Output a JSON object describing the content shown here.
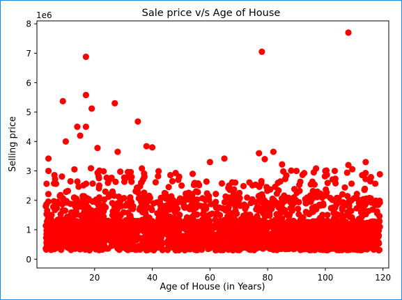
{
  "chart_data": {
    "type": "scatter",
    "title": "Sale price v/s Age of House",
    "xlabel": "Age of House (in Years)",
    "ylabel": "Selling price",
    "y_scale_label": "1e6",
    "xlim": [
      0,
      122
    ],
    "ylim": [
      -0.3,
      8.1
    ],
    "x_ticks": [
      20,
      40,
      60,
      80,
      100,
      120
    ],
    "y_ticks": [
      0,
      1,
      2,
      3,
      4,
      5,
      6,
      7,
      8
    ],
    "marker_color": "#ff0000",
    "grid": false,
    "outliers": [
      {
        "x": 108,
        "y": 7.7
      },
      {
        "x": 78,
        "y": 7.05
      },
      {
        "x": 17,
        "y": 6.88
      },
      {
        "x": 17,
        "y": 5.58
      },
      {
        "x": 9,
        "y": 5.37
      },
      {
        "x": 27,
        "y": 5.3
      },
      {
        "x": 19,
        "y": 5.12
      },
      {
        "x": 35,
        "y": 4.68
      },
      {
        "x": 14,
        "y": 4.5
      },
      {
        "x": 17,
        "y": 4.5
      },
      {
        "x": 15,
        "y": 4.2
      },
      {
        "x": 10,
        "y": 4.0
      },
      {
        "x": 38,
        "y": 3.84
      },
      {
        "x": 40,
        "y": 3.8
      },
      {
        "x": 21,
        "y": 3.78
      },
      {
        "x": 77,
        "y": 3.6
      },
      {
        "x": 82,
        "y": 3.65
      },
      {
        "x": 28,
        "y": 3.65
      },
      {
        "x": 79,
        "y": 3.4
      },
      {
        "x": 65,
        "y": 3.42
      },
      {
        "x": 4,
        "y": 3.42
      },
      {
        "x": 114,
        "y": 3.3
      },
      {
        "x": 60,
        "y": 3.3
      },
      {
        "x": 85,
        "y": 3.22
      },
      {
        "x": 108,
        "y": 3.2
      },
      {
        "x": 100,
        "y": 3.0
      },
      {
        "x": 90,
        "y": 3.0
      },
      {
        "x": 96,
        "y": 2.95
      },
      {
        "x": 4,
        "y": 3.0
      },
      {
        "x": 54,
        "y": 2.9
      },
      {
        "x": 42,
        "y": 2.82
      }
    ]
  }
}
